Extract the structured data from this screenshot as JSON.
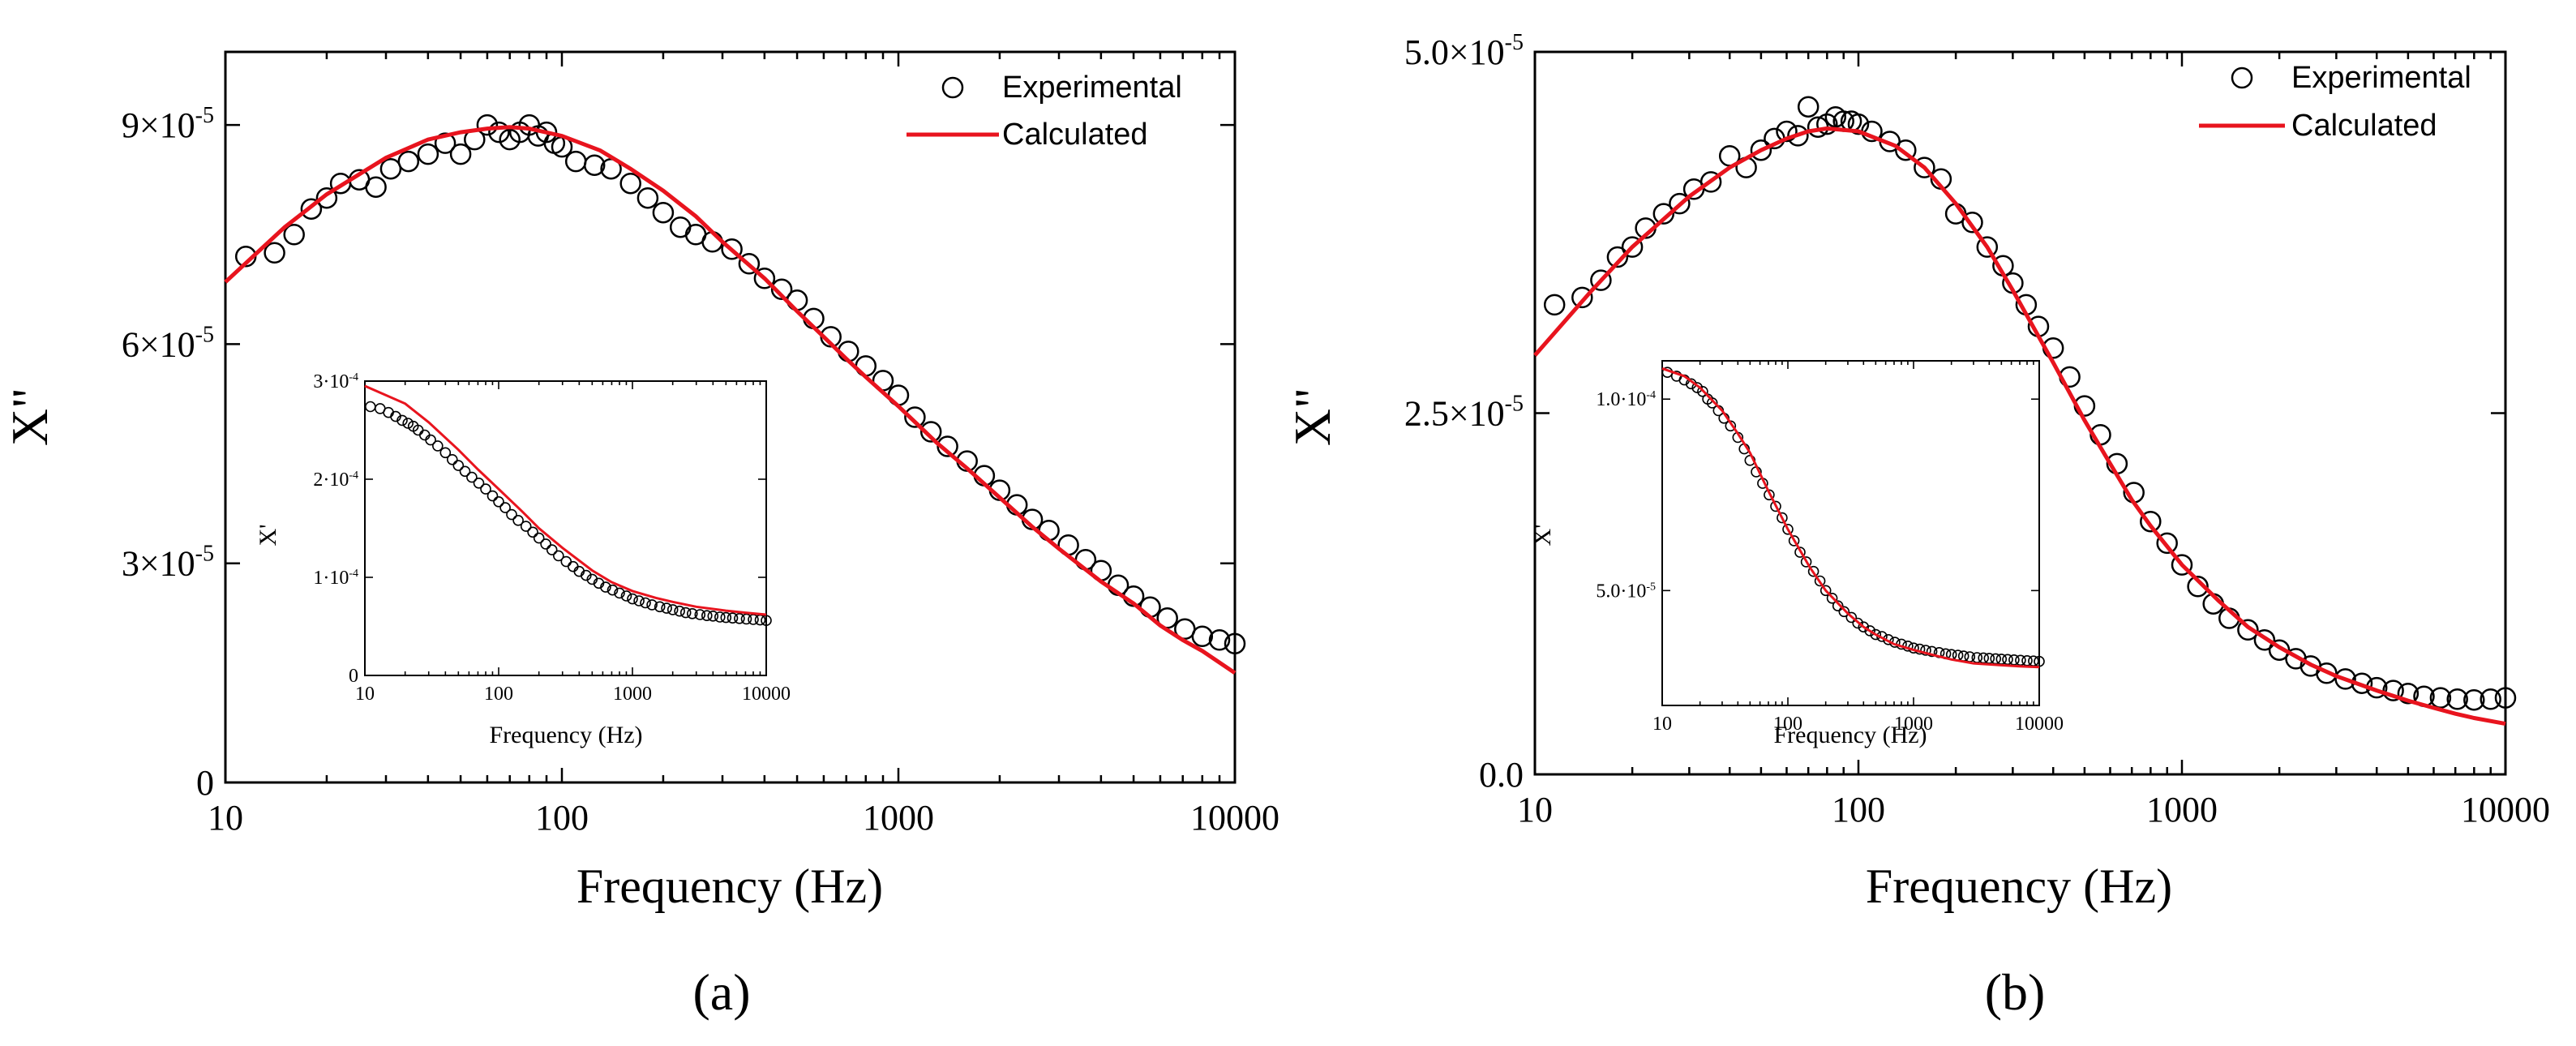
{
  "colors": {
    "calculated": "#e8141e",
    "experimental": "#000000"
  },
  "chart_data": [
    {
      "type": "scatter",
      "panel_label": "(a)",
      "title": "",
      "xlabel": "Frequency (Hz)",
      "ylabel": "X\"",
      "xscale": "log",
      "xlim": [
        10,
        10000
      ],
      "ylim": [
        0,
        0.0001
      ],
      "x_ticks": [
        10,
        100,
        1000,
        10000
      ],
      "x_tick_labels": [
        "10",
        "100",
        "1000",
        "10000"
      ],
      "y_ticks": [
        0,
        3e-05,
        6e-05,
        9e-05
      ],
      "y_tick_labels": [
        {
          "mant": "0",
          "exp": ""
        },
        {
          "mant": "3×10",
          "exp": "-5"
        },
        {
          "mant": "6×10",
          "exp": "-5"
        },
        {
          "mant": "9×10",
          "exp": "-5"
        }
      ],
      "legend": {
        "position": "top-right",
        "entries": [
          "Experimental",
          "Calculated"
        ]
      },
      "series": [
        {
          "name": "Experimental",
          "style": "open-circle",
          "x": [
            11.5,
            14,
            16,
            18,
            20,
            22,
            25,
            28,
            31,
            35,
            40,
            45,
            50,
            55,
            60,
            65,
            70,
            75,
            80,
            85,
            90,
            95,
            100,
            110,
            125,
            140,
            160,
            180,
            200,
            225,
            250,
            280,
            320,
            360,
            400,
            450,
            500,
            560,
            630,
            710,
            800,
            900,
            1000,
            1120,
            1250,
            1400,
            1600,
            1800,
            2000,
            2250,
            2500,
            2800,
            3200,
            3600,
            4000,
            4500,
            5000,
            5600,
            6300,
            7100,
            8000,
            9000,
            10000
          ],
          "y": [
            7.2e-05,
            7.25e-05,
            7.5e-05,
            7.85e-05,
            8e-05,
            8.2e-05,
            8.25e-05,
            8.15e-05,
            8.4e-05,
            8.5e-05,
            8.6e-05,
            8.75e-05,
            8.6e-05,
            8.8e-05,
            9e-05,
            8.9e-05,
            8.8e-05,
            8.9e-05,
            9e-05,
            8.85e-05,
            8.9e-05,
            8.75e-05,
            8.7e-05,
            8.5e-05,
            8.45e-05,
            8.4e-05,
            8.2e-05,
            8e-05,
            7.8e-05,
            7.6e-05,
            7.5e-05,
            7.4e-05,
            7.3e-05,
            7.1e-05,
            6.9e-05,
            6.75e-05,
            6.6e-05,
            6.35e-05,
            6.1e-05,
            5.9e-05,
            5.7e-05,
            5.5e-05,
            5.3e-05,
            5e-05,
            4.8e-05,
            4.6e-05,
            4.4e-05,
            4.2e-05,
            4e-05,
            3.8e-05,
            3.6e-05,
            3.45e-05,
            3.25e-05,
            3.05e-05,
            2.9e-05,
            2.7e-05,
            2.55e-05,
            2.4e-05,
            2.25e-05,
            2.1e-05,
            2e-05,
            1.95e-05,
            1.9e-05
          ]
        },
        {
          "name": "Calculated",
          "style": "line",
          "x": [
            10,
            15,
            20,
            30,
            40,
            50,
            60,
            70,
            80,
            100,
            130,
            160,
            200,
            250,
            300,
            400,
            500,
            600,
            700,
            800,
            1000,
            1300,
            1600,
            2000,
            2500,
            3000,
            4000,
            5000,
            6000,
            7000,
            8000,
            10000
          ],
          "y": [
            6.85e-05,
            7.6e-05,
            8.05e-05,
            8.55e-05,
            8.8e-05,
            8.9e-05,
            8.95e-05,
            8.97e-05,
            8.95e-05,
            8.85e-05,
            8.65e-05,
            8.4e-05,
            8.1e-05,
            7.75e-05,
            7.4e-05,
            6.9e-05,
            6.45e-05,
            6.1e-05,
            5.8e-05,
            5.55e-05,
            5.15e-05,
            4.65e-05,
            4.3e-05,
            3.9e-05,
            3.5e-05,
            3.2e-05,
            2.75e-05,
            2.45e-05,
            2.15e-05,
            1.95e-05,
            1.8e-05,
            1.5e-05
          ]
        }
      ],
      "inset": {
        "type": "scatter",
        "xlabel": "Frequency (Hz)",
        "ylabel": "X'",
        "xscale": "log",
        "xlim": [
          10,
          10000
        ],
        "ylim": [
          0,
          0.0003
        ],
        "x_ticks": [
          10,
          100,
          1000,
          10000
        ],
        "x_tick_labels": [
          "10",
          "100",
          "1000",
          "10000"
        ],
        "y_ticks": [
          0,
          0.0001,
          0.0002,
          0.0003
        ],
        "y_tick_labels": [
          {
            "mant": "0",
            "exp": ""
          },
          {
            "mant": "1·10",
            "exp": "-4"
          },
          {
            "mant": "2·10",
            "exp": "-4"
          },
          {
            "mant": "3·10",
            "exp": "-4"
          }
        ],
        "series": [
          {
            "name": "Experimental",
            "style": "open-circle",
            "x": [
              11,
              13,
              15,
              17,
              19,
              21,
              23,
              25,
              28,
              31,
              35,
              40,
              45,
              50,
              56,
              63,
              71,
              80,
              90,
              100,
              112,
              125,
              140,
              160,
              180,
              200,
              225,
              250,
              280,
              320,
              360,
              400,
              450,
              500,
              560,
              630,
              710,
              800,
              900,
              1000,
              1120,
              1250,
              1400,
              1600,
              1800,
              2000,
              2250,
              2500,
              2800,
              3200,
              3600,
              4000,
              4500,
              5000,
              5600,
              6300,
              7100,
              8000,
              9000,
              10000
            ],
            "y": [
              0.000274,
              0.000272,
              0.000268,
              0.000264,
              0.00026,
              0.000257,
              0.000254,
              0.00025,
              0.000245,
              0.00024,
              0.000234,
              0.000227,
              0.00022,
              0.000214,
              0.000208,
              0.000202,
              0.000196,
              0.00019,
              0.000183,
              0.000177,
              0.000171,
              0.000164,
              0.000158,
              0.000152,
              0.000146,
              0.00014,
              0.000134,
              0.000128,
              0.000122,
              0.000116,
              0.000111,
              0.000106,
              0.000102,
              9.8e-05,
              9.4e-05,
              9e-05,
              8.7e-05,
              8.4e-05,
              8.1e-05,
              7.8e-05,
              7.6e-05,
              7.4e-05,
              7.2e-05,
              7e-05,
              6.85e-05,
              6.7e-05,
              6.55e-05,
              6.4e-05,
              6.3e-05,
              6.2e-05,
              6.1e-05,
              6.05e-05,
              5.95e-05,
              5.9e-05,
              5.85e-05,
              5.8e-05,
              5.75e-05,
              5.7e-05,
              5.65e-05,
              5.6e-05
            ]
          },
          {
            "name": "Calculated",
            "style": "line",
            "x": [
              10,
              20,
              30,
              50,
              70,
              100,
              150,
              200,
              300,
              500,
              700,
              1000,
              1500,
              2000,
              3000,
              5000,
              7000,
              10000
            ],
            "y": [
              0.000295,
              0.000277,
              0.000258,
              0.00023,
              0.00021,
              0.00019,
              0.000167,
              0.00015,
              0.00013,
              0.000107,
              9.5e-05,
              8.6e-05,
              7.9e-05,
              7.5e-05,
              7e-05,
              6.6e-05,
              6.4e-05,
              6.2e-05
            ]
          }
        ]
      }
    },
    {
      "type": "scatter",
      "panel_label": "(b)",
      "title": "",
      "xlabel": "Frequency (Hz)",
      "ylabel": "X\"",
      "xscale": "log",
      "xlim": [
        10,
        10000
      ],
      "ylim": [
        0,
        5e-05
      ],
      "x_ticks": [
        10,
        100,
        1000,
        10000
      ],
      "x_tick_labels": [
        "10",
        "100",
        "1000",
        "10000"
      ],
      "y_ticks": [
        0,
        2.5e-05,
        5e-05
      ],
      "y_tick_labels": [
        {
          "mant": "0.0",
          "exp": ""
        },
        {
          "mant": "2.5×10",
          "exp": "-5"
        },
        {
          "mant": "5.0×10",
          "exp": "-5"
        }
      ],
      "legend": {
        "position": "top-right",
        "entries": [
          "Experimental",
          "Calculated"
        ]
      },
      "series": [
        {
          "name": "Experimental",
          "style": "open-circle",
          "x": [
            11.5,
            14,
            16,
            18,
            20,
            22,
            25,
            28,
            31,
            35,
            40,
            45,
            50,
            55,
            60,
            65,
            70,
            75,
            80,
            85,
            90,
            95,
            100,
            110,
            125,
            140,
            160,
            180,
            200,
            225,
            250,
            280,
            300,
            330,
            360,
            400,
            450,
            500,
            560,
            630,
            710,
            800,
            900,
            1000,
            1120,
            1250,
            1400,
            1600,
            1800,
            2000,
            2250,
            2500,
            2800,
            3200,
            3600,
            4000,
            4500,
            5000,
            5600,
            6300,
            7100,
            8000,
            9000,
            10000
          ],
          "y": [
            3.25e-05,
            3.3e-05,
            3.42e-05,
            3.58e-05,
            3.65e-05,
            3.78e-05,
            3.88e-05,
            3.95e-05,
            4.05e-05,
            4.1e-05,
            4.28e-05,
            4.2e-05,
            4.32e-05,
            4.4e-05,
            4.45e-05,
            4.42e-05,
            4.62e-05,
            4.48e-05,
            4.5e-05,
            4.55e-05,
            4.52e-05,
            4.52e-05,
            4.5e-05,
            4.45e-05,
            4.38e-05,
            4.32e-05,
            4.2e-05,
            4.12e-05,
            3.88e-05,
            3.82e-05,
            3.65e-05,
            3.52e-05,
            3.4e-05,
            3.25e-05,
            3.1e-05,
            2.95e-05,
            2.75e-05,
            2.55e-05,
            2.35e-05,
            2.15e-05,
            1.95e-05,
            1.75e-05,
            1.6e-05,
            1.45e-05,
            1.3e-05,
            1.18e-05,
            1.08e-05,
            1e-05,
            9.3e-06,
            8.6e-06,
            8e-06,
            7.5e-06,
            7e-06,
            6.6e-06,
            6.3e-06,
            6e-06,
            5.8e-06,
            5.6e-06,
            5.4e-06,
            5.3e-06,
            5.2e-06,
            5.15e-06,
            5.2e-06,
            5.3e-06
          ]
        },
        {
          "name": "Calculated",
          "style": "line",
          "x": [
            10,
            15,
            20,
            30,
            40,
            50,
            60,
            70,
            80,
            100,
            130,
            160,
            200,
            250,
            300,
            400,
            500,
            600,
            700,
            800,
            1000,
            1300,
            1600,
            2000,
            2500,
            3000,
            4000,
            5000,
            6000,
            7000,
            8000,
            10000
          ],
          "y": [
            2.9e-05,
            3.35e-05,
            3.65e-05,
            4e-05,
            4.2e-05,
            4.32e-05,
            4.4e-05,
            4.45e-05,
            4.47e-05,
            4.45e-05,
            4.35e-05,
            4.2e-05,
            3.95e-05,
            3.65e-05,
            3.35e-05,
            2.85e-05,
            2.45e-05,
            2.15e-05,
            1.9e-05,
            1.72e-05,
            1.45e-05,
            1.2e-05,
            1.02e-05,
            8.8e-06,
            7.6e-06,
            6.8e-06,
            5.8e-06,
            5.1e-06,
            4.6e-06,
            4.2e-06,
            3.9e-06,
            3.5e-06
          ]
        }
      ],
      "inset": {
        "type": "scatter",
        "xlabel": "Frequency (Hz)",
        "ylabel": "X'",
        "xscale": "log",
        "xlim": [
          10,
          10000
        ],
        "ylim": [
          2e-05,
          0.00011
        ],
        "x_ticks": [
          10,
          100,
          1000,
          10000
        ],
        "x_tick_labels": [
          "10",
          "100",
          "1000",
          "10000"
        ],
        "y_ticks": [
          5e-05,
          0.0001
        ],
        "y_tick_labels": [
          {
            "mant": "5.0·10",
            "exp": "-5"
          },
          {
            "mant": "1.0·10",
            "exp": "-4"
          }
        ],
        "series": [
          {
            "name": "Experimental",
            "style": "open-circle",
            "x": [
              11,
              13,
              15,
              17,
              19,
              21,
              23,
              25,
              28,
              31,
              35,
              40,
              45,
              50,
              56,
              63,
              71,
              80,
              90,
              100,
              112,
              125,
              140,
              160,
              180,
              200,
              225,
              250,
              280,
              320,
              360,
              400,
              450,
              500,
              560,
              630,
              710,
              800,
              900,
              1000,
              1120,
              1250,
              1400,
              1600,
              1800,
              2000,
              2250,
              2500,
              2800,
              3200,
              3600,
              4000,
              4500,
              5000,
              5600,
              6300,
              7100,
              8000,
              9000,
              10000
            ],
            "y": [
              0.000107,
              0.000106,
              0.000105,
              0.000104,
              0.000103,
              0.000102,
              0.0001,
              9.9e-05,
              9.7e-05,
              9.5e-05,
              9.3e-05,
              9e-05,
              8.7e-05,
              8.4e-05,
              8.1e-05,
              7.8e-05,
              7.5e-05,
              7.2e-05,
              6.9e-05,
              6.6e-05,
              6.3e-05,
              6e-05,
              5.75e-05,
              5.5e-05,
              5.25e-05,
              5e-05,
              4.8e-05,
              4.6e-05,
              4.45e-05,
              4.3e-05,
              4.15e-05,
              4.05e-05,
              3.95e-05,
              3.85e-05,
              3.8e-05,
              3.72e-05,
              3.65e-05,
              3.6e-05,
              3.55e-05,
              3.5e-05,
              3.47e-05,
              3.44e-05,
              3.41e-05,
              3.38e-05,
              3.35e-05,
              3.33e-05,
              3.31e-05,
              3.29e-05,
              3.27e-05,
              3.25e-05,
              3.24e-05,
              3.23e-05,
              3.22e-05,
              3.21e-05,
              3.2e-05,
              3.19e-05,
              3.18e-05,
              3.17e-05,
              3.16e-05,
              3.15e-05
            ]
          },
          {
            "name": "Calculated",
            "style": "line",
            "x": [
              10,
              15,
              20,
              30,
              40,
              50,
              70,
              100,
              150,
              200,
              300,
              400,
              500,
              700,
              1000,
              1500,
              2000,
              3000,
              5000,
              7000,
              10000
            ],
            "y": [
              0.000108,
              0.000106,
              0.000103,
              9.7e-05,
              9.1e-05,
              8.6e-05,
              7.6e-05,
              6.6e-05,
              5.6e-05,
              5e-05,
              4.4e-05,
              4.05e-05,
              3.85e-05,
              3.6e-05,
              3.45e-05,
              3.3e-05,
              3.2e-05,
              3.1e-05,
              3.05e-05,
              3.02e-05,
              3e-05
            ]
          }
        ]
      }
    }
  ]
}
